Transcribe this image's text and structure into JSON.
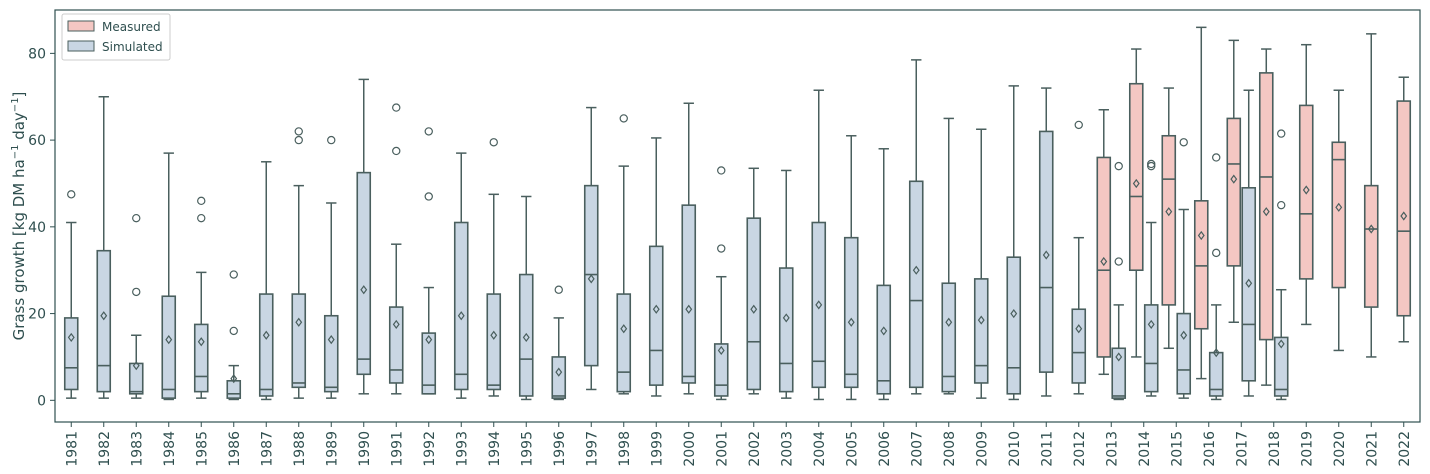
{
  "chart_data": {
    "type": "box",
    "ylabel_main": "Grass growth [kg DM ha",
    "ylabel_sup1": "−1",
    "ylabel_mid": " day",
    "ylabel_sup2": "−1",
    "ylabel_end": "]",
    "xlabel": "",
    "ylim": [
      -5,
      90
    ],
    "yticks": [
      0,
      20,
      40,
      60,
      80
    ],
    "grid": false,
    "legend_position": "top-left",
    "colors": {
      "measured": "#f4c7c3",
      "simulated": "#c9d6e3",
      "edge": "#4a5f5e",
      "frame": "#2f4f4f"
    },
    "legend": [
      {
        "key": "measured",
        "label": "Measured"
      },
      {
        "key": "simulated",
        "label": "Simulated"
      }
    ],
    "categories": [
      "1981",
      "1982",
      "1983",
      "1984",
      "1985",
      "1986",
      "1987",
      "1988",
      "1989",
      "1990",
      "1991",
      "1992",
      "1993",
      "1994",
      "1995",
      "1996",
      "1997",
      "1998",
      "1999",
      "2000",
      "2001",
      "2002",
      "2003",
      "2004",
      "2005",
      "2006",
      "2007",
      "2008",
      "2009",
      "2010",
      "2011",
      "2012",
      "2013",
      "2014",
      "2015",
      "2016",
      "2017",
      "2018",
      "2019",
      "2020",
      "2021",
      "2022"
    ],
    "series": [
      {
        "name": "Measured",
        "key": "measured",
        "boxes": [
          {
            "category": "2013",
            "whislo": 6,
            "q1": 10,
            "med": 30,
            "q3": 56,
            "whishi": 67,
            "mean": 32,
            "fliers": []
          },
          {
            "category": "2014",
            "whislo": 10,
            "q1": 30,
            "med": 47,
            "q3": 73,
            "whishi": 81,
            "mean": 50,
            "fliers": []
          },
          {
            "category": "2015",
            "whislo": 12,
            "q1": 22,
            "med": 51,
            "q3": 61,
            "whishi": 72,
            "mean": 43.5,
            "fliers": []
          },
          {
            "category": "2016",
            "whislo": 5,
            "q1": 16.5,
            "med": 31,
            "q3": 46,
            "whishi": 86,
            "mean": 38,
            "fliers": []
          },
          {
            "category": "2017",
            "whislo": 18,
            "q1": 31,
            "med": 54.5,
            "q3": 65,
            "whishi": 83,
            "mean": 51,
            "fliers": []
          },
          {
            "category": "2018",
            "whislo": 3.5,
            "q1": 14,
            "med": 51.5,
            "q3": 75.5,
            "whishi": 81,
            "mean": 43.5,
            "fliers": []
          },
          {
            "category": "2019",
            "whislo": 17.5,
            "q1": 28,
            "med": 43,
            "q3": 68,
            "whishi": 82,
            "mean": 48.5,
            "fliers": []
          },
          {
            "category": "2020",
            "whislo": 11.5,
            "q1": 26,
            "med": 55.5,
            "q3": 59.5,
            "whishi": 71.5,
            "mean": 44.5,
            "fliers": []
          },
          {
            "category": "2021",
            "whislo": 10,
            "q1": 21.5,
            "med": 39.5,
            "q3": 49.5,
            "whishi": 84.5,
            "mean": 39.5,
            "fliers": []
          },
          {
            "category": "2022",
            "whislo": 13.5,
            "q1": 19.5,
            "med": 39,
            "q3": 69,
            "whishi": 74.5,
            "mean": 42.5,
            "fliers": []
          }
        ]
      },
      {
        "name": "Simulated",
        "key": "simulated",
        "boxes": [
          {
            "category": "1981",
            "whislo": 0.5,
            "q1": 2.5,
            "med": 7.5,
            "q3": 19,
            "whishi": 41,
            "mean": 14.5,
            "fliers": [
              47.5
            ]
          },
          {
            "category": "1982",
            "whislo": 0.5,
            "q1": 2,
            "med": 8,
            "q3": 34.5,
            "whishi": 70,
            "mean": 19.5,
            "fliers": []
          },
          {
            "category": "1983",
            "whislo": 0.5,
            "q1": 1.5,
            "med": 2,
            "q3": 8.5,
            "whishi": 15,
            "mean": 8,
            "fliers": [
              25,
              42
            ]
          },
          {
            "category": "1984",
            "whislo": 0.2,
            "q1": 0.5,
            "med": 2.5,
            "q3": 24,
            "whishi": 57,
            "mean": 14,
            "fliers": []
          },
          {
            "category": "1985",
            "whislo": 0.5,
            "q1": 2,
            "med": 5.5,
            "q3": 17.5,
            "whishi": 29.5,
            "mean": 13.5,
            "fliers": [
              42,
              46
            ]
          },
          {
            "category": "1986",
            "whislo": 0.2,
            "q1": 0.5,
            "med": 1.5,
            "q3": 4.5,
            "whishi": 8,
            "mean": 5,
            "fliers": [
              16,
              29
            ]
          },
          {
            "category": "1987",
            "whislo": 0.2,
            "q1": 1,
            "med": 2.5,
            "q3": 24.5,
            "whishi": 55,
            "mean": 15,
            "fliers": []
          },
          {
            "category": "1988",
            "whislo": 0.5,
            "q1": 3,
            "med": 4,
            "q3": 24.5,
            "whishi": 49.5,
            "mean": 18,
            "fliers": [
              60,
              62
            ]
          },
          {
            "category": "1989",
            "whislo": 0.5,
            "q1": 2,
            "med": 3,
            "q3": 19.5,
            "whishi": 45.5,
            "mean": 14,
            "fliers": [
              60
            ]
          },
          {
            "category": "1990",
            "whislo": 1.5,
            "q1": 6,
            "med": 9.5,
            "q3": 52.5,
            "whishi": 74,
            "mean": 25.5,
            "fliers": []
          },
          {
            "category": "1991",
            "whislo": 1.5,
            "q1": 4,
            "med": 7,
            "q3": 21.5,
            "whishi": 36,
            "mean": 17.5,
            "fliers": [
              57.5,
              67.5
            ]
          },
          {
            "category": "1992",
            "whislo": 1.5,
            "q1": 1.5,
            "med": 3.5,
            "q3": 15.5,
            "whishi": 26,
            "mean": 14,
            "fliers": [
              47,
              62
            ]
          },
          {
            "category": "1993",
            "whislo": 0.5,
            "q1": 2.5,
            "med": 6,
            "q3": 41,
            "whishi": 57,
            "mean": 19.5,
            "fliers": []
          },
          {
            "category": "1994",
            "whislo": 1,
            "q1": 2.5,
            "med": 3.5,
            "q3": 24.5,
            "whishi": 47.5,
            "mean": 15,
            "fliers": [
              59.5
            ]
          },
          {
            "category": "1995",
            "whislo": 0.2,
            "q1": 1,
            "med": 9.5,
            "q3": 29,
            "whishi": 47,
            "mean": 14.5,
            "fliers": []
          },
          {
            "category": "1996",
            "whislo": 0.2,
            "q1": 0.5,
            "med": 1,
            "q3": 10,
            "whishi": 19,
            "mean": 6.5,
            "fliers": [
              25.5
            ]
          },
          {
            "category": "1997",
            "whislo": 2.5,
            "q1": 8,
            "med": 29,
            "q3": 49.5,
            "whishi": 67.5,
            "mean": 28,
            "fliers": []
          },
          {
            "category": "1998",
            "whislo": 1.5,
            "q1": 2,
            "med": 6.5,
            "q3": 24.5,
            "whishi": 54,
            "mean": 16.5,
            "fliers": [
              65
            ]
          },
          {
            "category": "1999",
            "whislo": 1,
            "q1": 3.5,
            "med": 11.5,
            "q3": 35.5,
            "whishi": 60.5,
            "mean": 21,
            "fliers": []
          },
          {
            "category": "2000",
            "whislo": 1.5,
            "q1": 4,
            "med": 5.5,
            "q3": 45,
            "whishi": 68.5,
            "mean": 21,
            "fliers": []
          },
          {
            "category": "2001",
            "whislo": 0.2,
            "q1": 1,
            "med": 3.5,
            "q3": 13,
            "whishi": 28.5,
            "mean": 11.5,
            "fliers": [
              35,
              53
            ]
          },
          {
            "category": "2002",
            "whislo": 1.5,
            "q1": 2.5,
            "med": 13.5,
            "q3": 42,
            "whishi": 53.5,
            "mean": 21,
            "fliers": []
          },
          {
            "category": "2003",
            "whislo": 0.5,
            "q1": 2,
            "med": 8.5,
            "q3": 30.5,
            "whishi": 53,
            "mean": 19,
            "fliers": []
          },
          {
            "category": "2004",
            "whislo": 0.2,
            "q1": 3,
            "med": 9,
            "q3": 41,
            "whishi": 71.5,
            "mean": 22,
            "fliers": []
          },
          {
            "category": "2005",
            "whislo": 0.2,
            "q1": 3,
            "med": 6,
            "q3": 37.5,
            "whishi": 61,
            "mean": 18,
            "fliers": []
          },
          {
            "category": "2006",
            "whislo": 0.2,
            "q1": 1.5,
            "med": 4.5,
            "q3": 26.5,
            "whishi": 58,
            "mean": 16,
            "fliers": []
          },
          {
            "category": "2007",
            "whislo": 1.5,
            "q1": 3,
            "med": 23,
            "q3": 50.5,
            "whishi": 78.5,
            "mean": 30,
            "fliers": []
          },
          {
            "category": "2008",
            "whislo": 1.5,
            "q1": 2,
            "med": 5.5,
            "q3": 27,
            "whishi": 65,
            "mean": 18,
            "fliers": []
          },
          {
            "category": "2009",
            "whislo": 0.5,
            "q1": 4,
            "med": 8,
            "q3": 28,
            "whishi": 62.5,
            "mean": 18.5,
            "fliers": []
          },
          {
            "category": "2010",
            "whislo": 0.2,
            "q1": 1.5,
            "med": 7.5,
            "q3": 33,
            "whishi": 72.5,
            "mean": 20,
            "fliers": []
          },
          {
            "category": "2011",
            "whislo": 1,
            "q1": 6.5,
            "med": 26,
            "q3": 62,
            "whishi": 72,
            "mean": 33.5,
            "fliers": []
          },
          {
            "category": "2012",
            "whislo": 1.5,
            "q1": 4,
            "med": 11,
            "q3": 21,
            "whishi": 37.5,
            "mean": 16.5,
            "fliers": [
              63.5
            ]
          },
          {
            "category": "2013",
            "whislo": 0.2,
            "q1": 0.5,
            "med": 1,
            "q3": 12,
            "whishi": 22,
            "mean": 10,
            "fliers": [
              32,
              54
            ]
          },
          {
            "category": "2014",
            "whislo": 1,
            "q1": 2,
            "med": 8.5,
            "q3": 22,
            "whishi": 41,
            "mean": 17.5,
            "fliers": [
              54,
              54.5
            ]
          },
          {
            "category": "2015",
            "whislo": 0.5,
            "q1": 1.5,
            "med": 7,
            "q3": 20,
            "whishi": 44,
            "mean": 15,
            "fliers": [
              59.5
            ]
          },
          {
            "category": "2016",
            "whislo": 0.2,
            "q1": 1,
            "med": 2.5,
            "q3": 11,
            "whishi": 22,
            "mean": 11,
            "fliers": [
              34,
              56
            ]
          },
          {
            "category": "2017",
            "whislo": 1,
            "q1": 4.5,
            "med": 17.5,
            "q3": 49,
            "whishi": 71.5,
            "mean": 27,
            "fliers": []
          },
          {
            "category": "2018",
            "whislo": 0.2,
            "q1": 1,
            "med": 2.5,
            "q3": 14.5,
            "whishi": 25.5,
            "mean": 13,
            "fliers": [
              45,
              61.5
            ]
          }
        ]
      }
    ]
  }
}
